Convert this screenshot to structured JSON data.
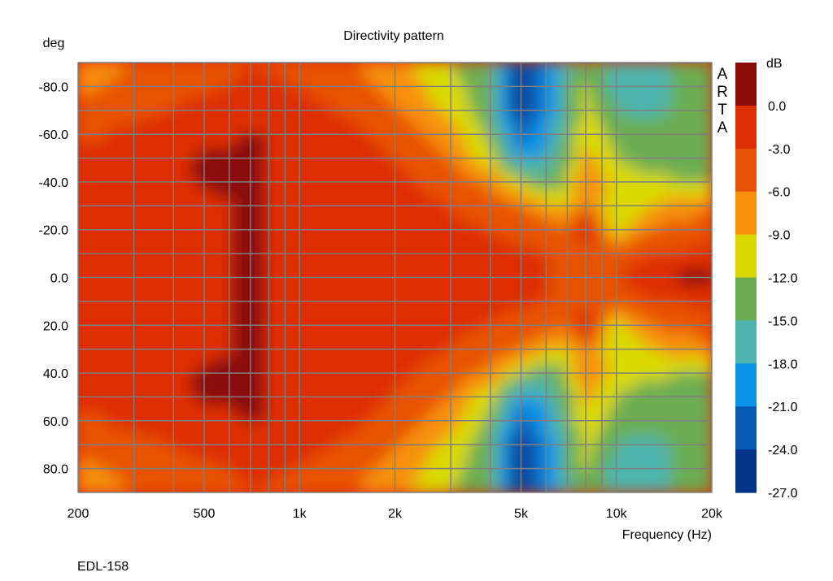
{
  "chart_data": {
    "type": "heatmap",
    "title": "Directivity pattern",
    "ylabel": "deg",
    "xlabel": "Frequency (Hz)",
    "x_scale": "log",
    "xlim": [
      200,
      20000
    ],
    "ylim": [
      -90,
      90
    ],
    "y_inverted": true,
    "x_ticks": [
      200,
      300,
      400,
      500,
      600,
      700,
      800,
      900,
      1000,
      2000,
      3000,
      4000,
      5000,
      6000,
      7000,
      8000,
      9000,
      10000,
      20000
    ],
    "x_tick_labels": [
      {
        "value": 200,
        "label": "200"
      },
      {
        "value": 500,
        "label": "500"
      },
      {
        "value": 1000,
        "label": "1k"
      },
      {
        "value": 2000,
        "label": "2k"
      },
      {
        "value": 5000,
        "label": "5k"
      },
      {
        "value": 10000,
        "label": "10k"
      },
      {
        "value": 20000,
        "label": "20k"
      }
    ],
    "y_ticks": [
      -90,
      -80,
      -70,
      -60,
      -50,
      -40,
      -30,
      -20,
      -10,
      0,
      10,
      20,
      30,
      40,
      50,
      60,
      70,
      80,
      90
    ],
    "y_tick_labels": [
      {
        "value": -80,
        "label": "-80.0"
      },
      {
        "value": -60,
        "label": "-60.0"
      },
      {
        "value": -40,
        "label": "-40.0"
      },
      {
        "value": -20,
        "label": "-20.0"
      },
      {
        "value": 0,
        "label": "0.0"
      },
      {
        "value": 20,
        "label": "20.0"
      },
      {
        "value": 40,
        "label": "40.0"
      },
      {
        "value": 60,
        "label": "60.0"
      },
      {
        "value": 80,
        "label": "80.0"
      }
    ],
    "grid": true,
    "colorbar": {
      "unit": "dB",
      "levels": [
        3,
        0,
        -3,
        -6,
        -9,
        -12,
        -15,
        -18,
        -21,
        -24,
        -27
      ],
      "labels": [
        "0.0",
        "-3.0",
        "-6.0",
        "-9.0",
        "-12.0",
        "-15.0",
        "-18.0",
        "-21.0",
        "-24.0",
        "-27.0"
      ],
      "colors": [
        "#8a0a0a",
        "#de2e04",
        "#e85206",
        "#f7900a",
        "#d9d900",
        "#6cad53",
        "#4db5ad",
        "#0c92e6",
        "#0759b3",
        "#03348a"
      ]
    },
    "approx_grid": {
      "frequencies": [
        200,
        300,
        500,
        700,
        1000,
        1500,
        2000,
        3000,
        4000,
        5000,
        6000,
        7000,
        8000,
        10000,
        12000,
        15000,
        20000
      ],
      "angles": [
        0,
        10,
        20,
        30,
        40,
        50,
        60,
        70,
        80,
        90
      ],
      "symmetric_about_zero": true,
      "values_db": [
        [
          -2,
          -2,
          -1,
          0.5,
          -1,
          -2,
          -2,
          -2,
          -2,
          -2.5,
          -3,
          -3,
          -3.5,
          -3,
          -2,
          0.5,
          0.8
        ],
        [
          -2,
          -2,
          -1,
          0.5,
          -1,
          -2,
          -2,
          -2,
          -2,
          -2.5,
          -3,
          -3.5,
          -4,
          -4,
          -3.5,
          -3,
          -2
        ],
        [
          -2,
          -2,
          -1,
          0.5,
          -1,
          -2,
          -2,
          -2.5,
          -3,
          -4,
          -5,
          -6,
          0.5,
          -11,
          -7,
          -5,
          -4
        ],
        [
          -2,
          -2,
          -1,
          0.5,
          -1,
          -2,
          -2,
          -3,
          -4,
          -6,
          -8,
          -10,
          -6,
          -12,
          -10,
          -8,
          -7
        ],
        [
          -2,
          -2,
          0.5,
          0.5,
          -1,
          -2,
          -2.5,
          -4,
          -7,
          -12,
          -15,
          -12,
          -6,
          -10,
          -11,
          -12,
          -12
        ],
        [
          -2,
          -2,
          0.5,
          0.5,
          -1,
          -2,
          -3,
          -6,
          -11,
          -19,
          -17,
          -13,
          -8,
          -12,
          -13,
          -12,
          -14
        ],
        [
          -4,
          -2,
          -2,
          0.5,
          -2,
          -2.5,
          -4,
          -8,
          -13,
          -22,
          -19,
          -14,
          -10,
          -13,
          -13,
          -14,
          -14
        ],
        [
          -5,
          -4,
          -2,
          -2,
          -2,
          -3.5,
          -6,
          -10,
          -14,
          -25,
          -20,
          -15,
          -11,
          -15,
          -16,
          -15,
          -13
        ],
        [
          -7,
          -5,
          -3.5,
          -2.5,
          -3,
          -5,
          -7,
          -11,
          -14,
          -26,
          -20,
          -15,
          -12,
          -16,
          -17,
          -15,
          -13
        ],
        [
          -7,
          -6,
          -4,
          -3,
          -3.5,
          -6,
          -8,
          -12,
          -15,
          -25,
          -20,
          -16,
          -13,
          -17,
          -18,
          -15,
          -14
        ]
      ]
    },
    "annotations": [
      "ARTA",
      "EDL-158"
    ]
  },
  "watermark": {
    "letters": [
      "A",
      "R",
      "T",
      "A"
    ]
  },
  "footer": {
    "label": "EDL-158"
  }
}
